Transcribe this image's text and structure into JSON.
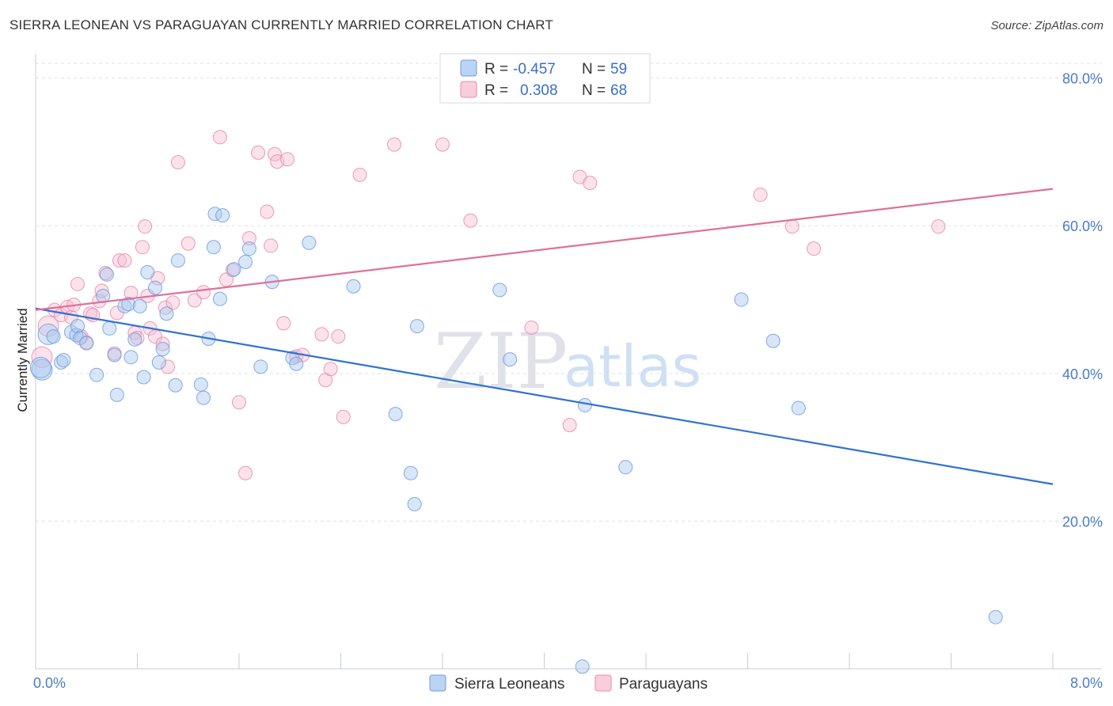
{
  "title": "SIERRA LEONEAN VS PARAGUAYAN CURRENTLY MARRIED CORRELATION CHART",
  "source": "Source: ZipAtlas.com",
  "watermark": {
    "zip": "ZIP",
    "atlas": "atlas"
  },
  "colors": {
    "blue": "#a9c8f0",
    "blue_stroke": "#6d9de0",
    "blue_line": "#2f72d3",
    "pink": "#f6bfd2",
    "pink_stroke": "#e98aab",
    "pink_line": "#e0709a",
    "grid": "#dde0e6"
  },
  "legend": {
    "blue": {
      "r_label": "R =",
      "r_value": "-0.457",
      "n_label": "N =",
      "n_value": "59"
    },
    "pink": {
      "r_label": "R =",
      "r_value": "0.308",
      "n_label": "N =",
      "n_value": "68"
    }
  },
  "chart_data": {
    "type": "scatter",
    "xlabel": "",
    "ylabel": "Currently Married",
    "xlim": [
      0,
      8
    ],
    "ylim": [
      0,
      82
    ],
    "x_ticks": [
      0,
      8
    ],
    "x_tick_labels": [
      "0.0%",
      "8.0%"
    ],
    "y_ticks": [
      20,
      40,
      60,
      80
    ],
    "y_tick_labels": [
      "20.0%",
      "40.0%",
      "60.0%",
      "80.0%"
    ],
    "grid": true,
    "series": [
      {
        "name": "Sierra Leoneans",
        "color": "blue",
        "trend": [
          [
            0,
            48.8
          ],
          [
            8,
            25.0
          ]
        ],
        "points": [
          [
            0.05,
            40.5
          ],
          [
            0.1,
            45.3
          ],
          [
            0.14,
            45.0
          ],
          [
            0.2,
            41.5
          ],
          [
            0.22,
            41.8
          ],
          [
            0.28,
            45.6
          ],
          [
            0.32,
            45.2
          ],
          [
            0.33,
            46.4
          ],
          [
            0.35,
            44.8
          ],
          [
            0.4,
            44.1
          ],
          [
            0.48,
            39.8
          ],
          [
            0.53,
            50.5
          ],
          [
            0.56,
            53.4
          ],
          [
            0.58,
            46.1
          ],
          [
            0.62,
            42.5
          ],
          [
            0.64,
            37.1
          ],
          [
            0.7,
            49.1
          ],
          [
            0.73,
            49.4
          ],
          [
            0.75,
            42.2
          ],
          [
            0.78,
            44.6
          ],
          [
            0.82,
            49.1
          ],
          [
            0.85,
            39.5
          ],
          [
            0.88,
            53.7
          ],
          [
            0.94,
            51.6
          ],
          [
            0.97,
            41.5
          ],
          [
            1.0,
            43.3
          ],
          [
            1.03,
            48.1
          ],
          [
            1.1,
            38.4
          ],
          [
            1.12,
            55.3
          ],
          [
            1.4,
            57.1
          ],
          [
            1.3,
            38.5
          ],
          [
            1.32,
            36.7
          ],
          [
            1.36,
            44.7
          ],
          [
            1.41,
            61.6
          ],
          [
            1.45,
            50.1
          ],
          [
            1.47,
            61.4
          ],
          [
            1.56,
            54.1
          ],
          [
            1.65,
            55.1
          ],
          [
            1.68,
            56.9
          ],
          [
            1.77,
            40.9
          ],
          [
            1.86,
            52.4
          ],
          [
            2.02,
            42.1
          ],
          [
            2.05,
            41.3
          ],
          [
            2.15,
            57.7
          ],
          [
            2.5,
            51.8
          ],
          [
            2.83,
            34.5
          ],
          [
            2.95,
            26.5
          ],
          [
            2.98,
            22.3
          ],
          [
            3.0,
            46.4
          ],
          [
            3.65,
            51.3
          ],
          [
            3.73,
            41.9
          ],
          [
            4.3,
            0.3
          ],
          [
            4.32,
            35.7
          ],
          [
            4.64,
            27.3
          ],
          [
            5.55,
            50.0
          ],
          [
            5.8,
            44.4
          ],
          [
            6.0,
            35.3
          ],
          [
            7.55,
            7.0
          ],
          [
            0.04,
            40.8
          ]
        ]
      },
      {
        "name": "Paraguayans",
        "color": "pink",
        "trend": [
          [
            0,
            48.6
          ],
          [
            8,
            65.0
          ]
        ],
        "points": [
          [
            0.05,
            42.2
          ],
          [
            0.1,
            46.4
          ],
          [
            0.15,
            48.6
          ],
          [
            0.2,
            47.9
          ],
          [
            0.25,
            49.0
          ],
          [
            0.28,
            47.6
          ],
          [
            0.3,
            49.3
          ],
          [
            0.33,
            52.1
          ],
          [
            0.36,
            45.0
          ],
          [
            0.4,
            44.2
          ],
          [
            0.43,
            48.1
          ],
          [
            0.45,
            47.9
          ],
          [
            0.5,
            49.8
          ],
          [
            0.52,
            51.2
          ],
          [
            0.55,
            53.6
          ],
          [
            0.62,
            42.7
          ],
          [
            0.64,
            48.2
          ],
          [
            0.66,
            55.3
          ],
          [
            0.7,
            55.3
          ],
          [
            0.75,
            50.9
          ],
          [
            0.78,
            45.5
          ],
          [
            0.8,
            44.8
          ],
          [
            0.84,
            57.1
          ],
          [
            0.86,
            59.9
          ],
          [
            0.88,
            50.5
          ],
          [
            0.9,
            46.1
          ],
          [
            0.94,
            45.0
          ],
          [
            0.96,
            52.9
          ],
          [
            1.0,
            44.0
          ],
          [
            1.02,
            48.9
          ],
          [
            1.04,
            40.9
          ],
          [
            1.08,
            49.6
          ],
          [
            1.12,
            68.6
          ],
          [
            1.2,
            57.6
          ],
          [
            1.25,
            49.9
          ],
          [
            1.32,
            51.0
          ],
          [
            1.45,
            72.0
          ],
          [
            1.5,
            52.7
          ],
          [
            1.55,
            54.0
          ],
          [
            1.6,
            36.1
          ],
          [
            1.65,
            26.5
          ],
          [
            1.68,
            58.3
          ],
          [
            1.75,
            69.9
          ],
          [
            1.82,
            61.9
          ],
          [
            1.85,
            57.3
          ],
          [
            1.88,
            69.7
          ],
          [
            1.9,
            68.7
          ],
          [
            1.95,
            46.8
          ],
          [
            1.98,
            69.0
          ],
          [
            2.05,
            42.3
          ],
          [
            2.1,
            42.5
          ],
          [
            2.25,
            45.3
          ],
          [
            2.28,
            39.1
          ],
          [
            2.32,
            40.6
          ],
          [
            2.38,
            45.0
          ],
          [
            2.42,
            34.1
          ],
          [
            2.55,
            66.9
          ],
          [
            2.82,
            71.0
          ],
          [
            3.2,
            71.0
          ],
          [
            3.42,
            60.7
          ],
          [
            3.9,
            46.2
          ],
          [
            4.2,
            33.0
          ],
          [
            4.28,
            66.6
          ],
          [
            4.36,
            65.8
          ],
          [
            5.7,
            64.2
          ],
          [
            5.95,
            59.9
          ],
          [
            6.12,
            56.9
          ],
          [
            7.1,
            59.9
          ]
        ]
      }
    ]
  }
}
